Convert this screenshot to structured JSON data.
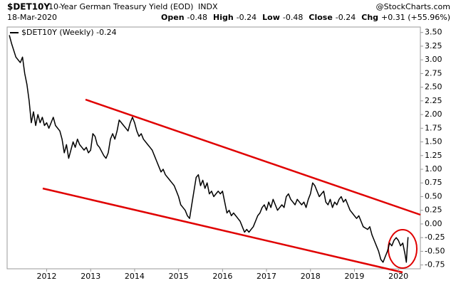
{
  "header": {
    "symbol": "$DET10Y",
    "title": "10-Year German Treasury Yield (EOD)",
    "exchange": "INDX",
    "source": "@StockCharts.com",
    "date": "18-Mar-2020",
    "stats": [
      {
        "label": "Open",
        "value": "-0.48"
      },
      {
        "label": "High",
        "value": "-0.24"
      },
      {
        "label": "Low",
        "value": "-0.48"
      },
      {
        "label": "Close",
        "value": "-0.24"
      },
      {
        "label": "Chg",
        "value": "+0.31 (+55.96%)"
      }
    ]
  },
  "chart_data": {
    "type": "line",
    "x": [
      2011.15,
      2011.2,
      2011.3,
      2011.4,
      2011.45,
      2011.5,
      2011.55,
      2011.6,
      2011.65,
      2011.7,
      2011.75,
      2011.8,
      2011.85,
      2011.9,
      2011.95,
      2012.0,
      2012.05,
      2012.1,
      2012.15,
      2012.2,
      2012.3,
      2012.35,
      2012.4,
      2012.45,
      2012.5,
      2012.55,
      2012.6,
      2012.65,
      2012.7,
      2012.75,
      2012.8,
      2012.85,
      2012.9,
      2012.95,
      2013.0,
      2013.05,
      2013.1,
      2013.15,
      2013.2,
      2013.3,
      2013.35,
      2013.4,
      2013.45,
      2013.5,
      2013.55,
      2013.6,
      2013.65,
      2013.7,
      2013.75,
      2013.8,
      2013.85,
      2013.9,
      2013.95,
      2014.0,
      2014.05,
      2014.1,
      2014.15,
      2014.2,
      2014.3,
      2014.35,
      2014.4,
      2014.45,
      2014.5,
      2014.55,
      2014.6,
      2014.65,
      2014.7,
      2014.75,
      2014.8,
      2014.85,
      2014.9,
      2014.95,
      2015.0,
      2015.05,
      2015.1,
      2015.15,
      2015.2,
      2015.25,
      2015.3,
      2015.35,
      2015.4,
      2015.45,
      2015.5,
      2015.55,
      2015.6,
      2015.65,
      2015.7,
      2015.75,
      2015.8,
      2015.85,
      2015.9,
      2015.95,
      2016.0,
      2016.05,
      2016.1,
      2016.15,
      2016.2,
      2016.25,
      2016.3,
      2016.35,
      2016.4,
      2016.45,
      2016.5,
      2016.55,
      2016.6,
      2016.65,
      2016.7,
      2016.75,
      2016.8,
      2016.85,
      2016.9,
      2016.95,
      2017.0,
      2017.05,
      2017.1,
      2017.15,
      2017.2,
      2017.25,
      2017.3,
      2017.35,
      2017.4,
      2017.45,
      2017.5,
      2017.55,
      2017.6,
      2017.65,
      2017.7,
      2017.75,
      2017.8,
      2017.85,
      2017.9,
      2017.95,
      2018.0,
      2018.05,
      2018.1,
      2018.15,
      2018.2,
      2018.25,
      2018.3,
      2018.35,
      2018.4,
      2018.45,
      2018.5,
      2018.55,
      2018.6,
      2018.65,
      2018.7,
      2018.75,
      2018.8,
      2018.85,
      2018.9,
      2018.95,
      2019.0,
      2019.05,
      2019.1,
      2019.15,
      2019.2,
      2019.3,
      2019.35,
      2019.4,
      2019.45,
      2019.5,
      2019.55,
      2019.6,
      2019.65,
      2019.7,
      2019.75,
      2019.8,
      2019.85,
      2019.9,
      2019.95,
      2020.0,
      2020.05,
      2020.1,
      2020.15,
      2020.18,
      2020.2,
      2020.22
    ],
    "series": [
      {
        "name": "$DET10Y (Weekly) -0.24",
        "color": "#000000",
        "values": [
          3.45,
          3.3,
          3.05,
          2.95,
          3.05,
          2.75,
          2.55,
          2.25,
          1.85,
          2.05,
          1.8,
          2.0,
          1.85,
          1.95,
          1.8,
          1.85,
          1.75,
          1.85,
          1.95,
          1.8,
          1.7,
          1.55,
          1.3,
          1.45,
          1.2,
          1.35,
          1.5,
          1.4,
          1.55,
          1.45,
          1.4,
          1.35,
          1.4,
          1.3,
          1.35,
          1.65,
          1.6,
          1.45,
          1.4,
          1.25,
          1.2,
          1.3,
          1.55,
          1.65,
          1.55,
          1.7,
          1.9,
          1.85,
          1.8,
          1.75,
          1.7,
          1.85,
          1.95,
          1.85,
          1.7,
          1.6,
          1.65,
          1.55,
          1.45,
          1.4,
          1.35,
          1.25,
          1.15,
          1.05,
          0.95,
          1.0,
          0.9,
          0.85,
          0.8,
          0.75,
          0.7,
          0.6,
          0.5,
          0.35,
          0.3,
          0.25,
          0.15,
          0.1,
          0.35,
          0.6,
          0.85,
          0.9,
          0.7,
          0.8,
          0.65,
          0.75,
          0.55,
          0.6,
          0.5,
          0.55,
          0.6,
          0.55,
          0.6,
          0.4,
          0.2,
          0.25,
          0.15,
          0.2,
          0.15,
          0.1,
          0.05,
          -0.05,
          -0.15,
          -0.1,
          -0.15,
          -0.1,
          -0.05,
          0.05,
          0.15,
          0.2,
          0.3,
          0.35,
          0.25,
          0.4,
          0.3,
          0.45,
          0.35,
          0.25,
          0.3,
          0.35,
          0.3,
          0.5,
          0.55,
          0.45,
          0.4,
          0.35,
          0.45,
          0.4,
          0.35,
          0.4,
          0.3,
          0.45,
          0.55,
          0.75,
          0.7,
          0.6,
          0.5,
          0.55,
          0.6,
          0.4,
          0.35,
          0.45,
          0.3,
          0.4,
          0.35,
          0.45,
          0.5,
          0.4,
          0.45,
          0.35,
          0.25,
          0.2,
          0.15,
          0.1,
          0.15,
          0.05,
          -0.05,
          -0.1,
          -0.05,
          -0.2,
          -0.3,
          -0.4,
          -0.5,
          -0.65,
          -0.7,
          -0.6,
          -0.5,
          -0.35,
          -0.4,
          -0.3,
          -0.25,
          -0.3,
          -0.4,
          -0.35,
          -0.55,
          -0.7,
          -0.45,
          -0.24
        ]
      }
    ],
    "xlim": [
      2011.1,
      2020.5
    ],
    "xticks": [
      2012,
      2013,
      2014,
      2015,
      2016,
      2017,
      2018,
      2019,
      2020
    ],
    "ylim": [
      -0.82,
      3.6
    ],
    "yticks": [
      {
        "value": 3.5,
        "label": "3.50"
      },
      {
        "value": 3.25,
        "label": "3.25"
      },
      {
        "value": 3.0,
        "label": "3.00"
      },
      {
        "value": 2.75,
        "label": "2.75"
      },
      {
        "value": 2.5,
        "label": "2.50"
      },
      {
        "value": 2.25,
        "label": "2.25"
      },
      {
        "value": 2.0,
        "label": "2.00"
      },
      {
        "value": 1.75,
        "label": "1.75"
      },
      {
        "value": 1.5,
        "label": "1.50"
      },
      {
        "value": 1.25,
        "label": "1.25"
      },
      {
        "value": 1.0,
        "label": "1.00"
      },
      {
        "value": 0.75,
        "label": "0.75"
      },
      {
        "value": 0.5,
        "label": "0.50"
      },
      {
        "value": 0.25,
        "label": "0.25"
      },
      {
        "value": 0.0,
        "label": "0.00"
      },
      {
        "value": -0.25,
        "label": "-0.25"
      },
      {
        "value": -0.5,
        "label": "-0.50"
      },
      {
        "value": -0.75,
        "label": "-0.75"
      }
    ],
    "grid": false
  }
}
